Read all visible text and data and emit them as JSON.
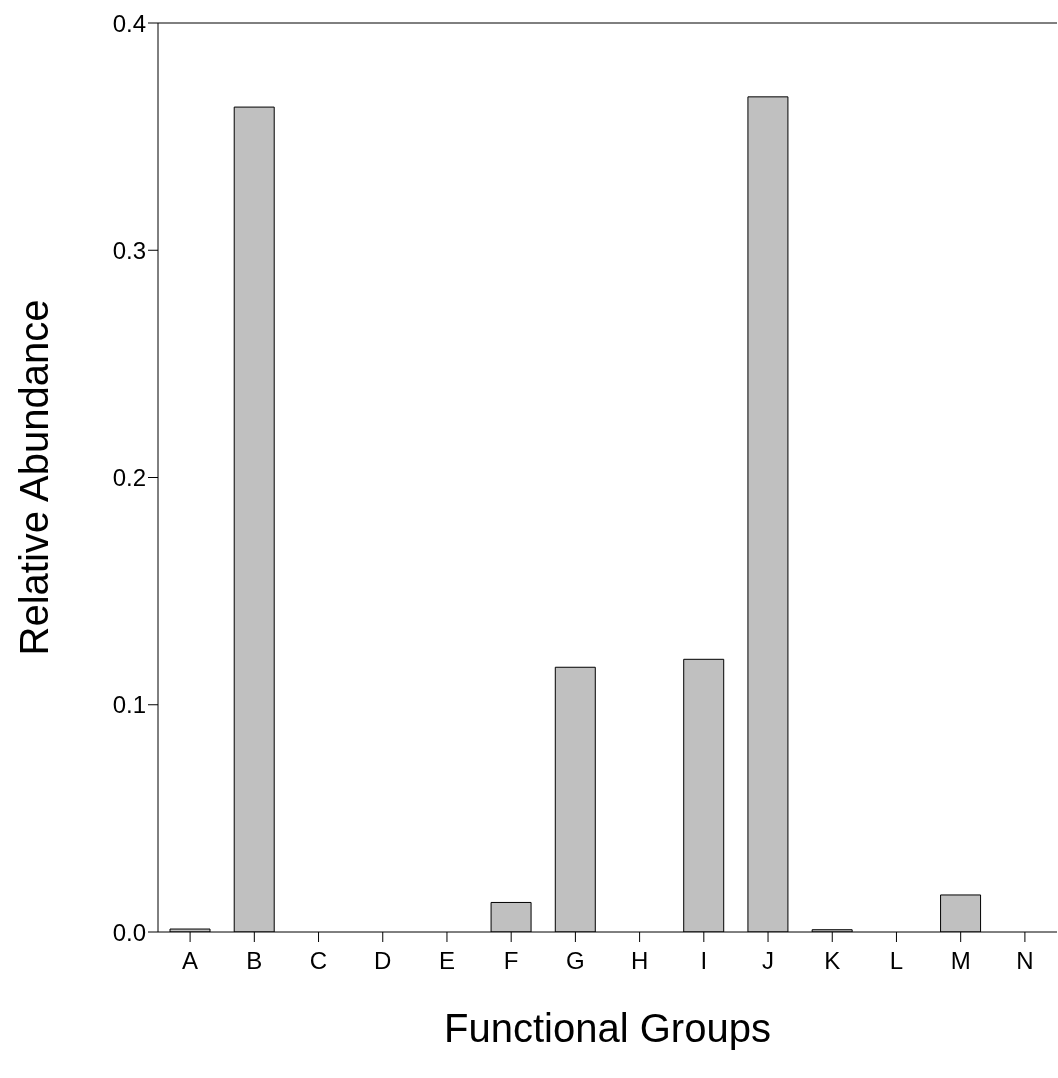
{
  "chart_data": {
    "type": "bar",
    "xlabel": "Functional Groups",
    "ylabel": "Relative Abundance",
    "categories": [
      "A",
      "B",
      "C",
      "D",
      "E",
      "F",
      "G",
      "H",
      "I",
      "J",
      "K",
      "L",
      "M",
      "N"
    ],
    "values": [
      0.0013,
      0.363,
      0,
      0,
      0,
      0.013,
      0.1165,
      0,
      0.12,
      0.3675,
      0.001,
      0,
      0.0163,
      0
    ],
    "color": "#c0c0c0",
    "ylim": [
      0,
      0.4
    ],
    "yticks": [
      {
        "value": 0,
        "label": "0.0"
      },
      {
        "value": 0.1,
        "label": "0.1"
      },
      {
        "value": 0.2,
        "label": "0.2"
      },
      {
        "value": 0.3,
        "label": "0.3"
      },
      {
        "value": 0.4,
        "label": "0.4"
      }
    ],
    "grid": false,
    "legend": false
  }
}
